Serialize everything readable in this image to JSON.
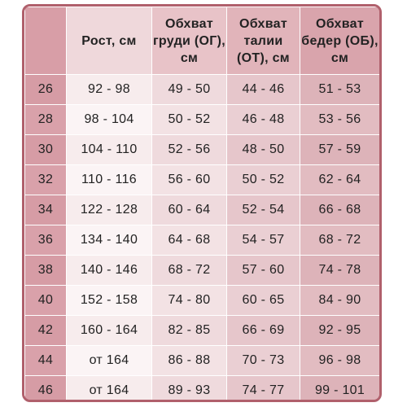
{
  "table": {
    "headers": [
      "",
      "Рост, см",
      "Обхват груди (ОГ), см",
      "Обхват талии (ОТ), см",
      "Обхват бедер (ОБ), см"
    ],
    "rows": [
      [
        "26",
        "92 - 98",
        "49 - 50",
        "44 - 46",
        "51 - 53"
      ],
      [
        "28",
        "98 - 104",
        "50 - 52",
        "46 - 48",
        "53 - 56"
      ],
      [
        "30",
        "104 - 110",
        "52 - 56",
        "48 - 50",
        "57 - 59"
      ],
      [
        "32",
        "110 - 116",
        "56 - 60",
        "50 - 52",
        "62 - 64"
      ],
      [
        "34",
        "122 - 128",
        "60 - 64",
        "52 - 54",
        "66 - 68"
      ],
      [
        "36",
        "134 - 140",
        "64 - 68",
        "54 - 57",
        "68 - 72"
      ],
      [
        "38",
        "140 - 146",
        "68 - 72",
        "57 - 60",
        "74 - 78"
      ],
      [
        "40",
        "152 - 158",
        "74 - 80",
        "60 - 65",
        "84 - 90"
      ],
      [
        "42",
        "160 - 164",
        "82 - 85",
        "66 - 69",
        "92 - 95"
      ],
      [
        "44",
        "от 164",
        "86 - 88",
        "70 - 73",
        "96 - 98"
      ],
      [
        "46",
        "от 164",
        "89 - 93",
        "74 - 77",
        "99 - 101"
      ]
    ]
  },
  "colors": {
    "border": "#b0606c",
    "size_column": "#d69ca5",
    "light_cell": "#f7eced",
    "dark_cell": "#ddb3b9"
  }
}
